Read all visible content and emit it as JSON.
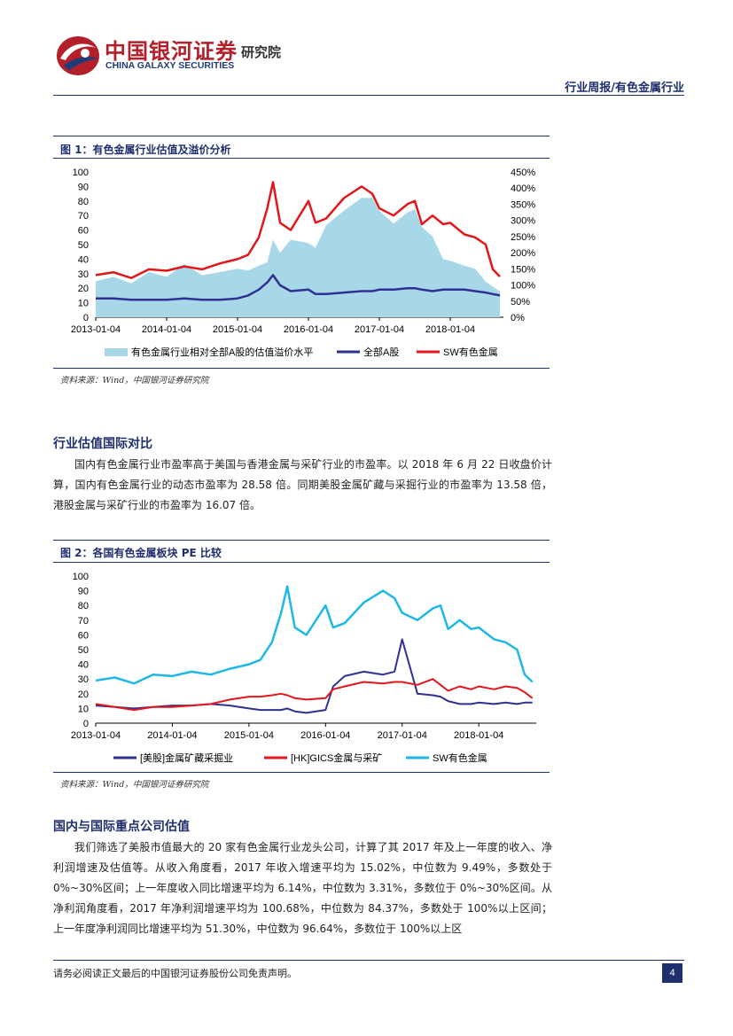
{
  "header": {
    "logo_cn": "中国银河证券",
    "logo_en": "CHINA GALAXY SECURITIES",
    "logo_sub": "研究院",
    "report_type": "行业周报/有色金属行业"
  },
  "figure1": {
    "title": "图 1：有色金属行业估值及溢价分析",
    "source": "资料来源：Wind，中国银河证券研究院"
  },
  "section1": {
    "heading": "行业估值国际对比",
    "paragraph": "国内有色金属行业市盈率高于美国与香港金属与采矿行业的市盈率。以 2018 年 6 月 22 日收盘价计算，国内有色金属行业的动态市盈率为 28.58 倍。同期美股金属矿藏与采掘行业的市盈率为 13.58 倍，港股金属与采矿行业的市盈率为 16.07 倍。"
  },
  "figure2": {
    "title": "图 2：各国有色金属板块 PE 比较",
    "source": "资料来源：Wind，中国银河证券研究院"
  },
  "section2": {
    "heading": "国内与国际重点公司估值",
    "paragraph": "我们筛选了美股市值最大的 20 家有色金属行业龙头公司，计算了其 2017 年及上一年度的收入、净利润增速及估值等。从收入角度看，2017 年收入增速平均为 15.02%，中位数为 9.49%，多数处于 0%~30%区间；上一年度收入同比增速平均为 6.14%，中位数为 3.31%，多数位于 0%~30%区间。从净利润角度看，2017 年净利润增速平均为 100.68%，中位数为 84.37%，多数处于 100%以上区间；上一年度净利润同比增速平均为 51.30%，中位数为 96.64%，多数位于 100%以上区"
  },
  "footer": {
    "disclaimer": "请务必阅读正文最后的中国银河证券股份公司免责声明。",
    "page": "4"
  },
  "colors": {
    "brand_navy": "#1f2f6e",
    "brand_red": "#b3202a",
    "premium_area": "#a8d8e8",
    "all_a": "#2e3192",
    "sw_red": "#e3161b",
    "us_navy": "#2e3192",
    "hk_red": "#e3161b",
    "sw_cyan": "#1fb8e6"
  },
  "chart_data": [
    {
      "type": "line",
      "title": "有色金属行业估值及溢价分析",
      "x_tick_labels": [
        "2013-01-04",
        "2014-01-04",
        "2015-01-04",
        "2016-01-04",
        "2017-01-04",
        "2018-01-04"
      ],
      "x_range": [
        2013.0,
        2018.75
      ],
      "y_left_ticks": [
        "0",
        "10",
        "20",
        "30",
        "40",
        "50",
        "60",
        "70",
        "80",
        "90",
        "100"
      ],
      "y_left_range": [
        0,
        100
      ],
      "y_right_ticks": [
        "0%",
        "50%",
        "100%",
        "150%",
        "200%",
        "250%",
        "300%",
        "350%",
        "400%",
        "450%"
      ],
      "y_right_range": [
        0,
        450
      ],
      "legend": [
        "有色金属行业相对全部A股的估值溢价水平",
        "全部A股",
        "SW有色金属"
      ],
      "legend_position": "bottom",
      "x": [
        2013.0,
        2013.25,
        2013.5,
        2013.75,
        2014.0,
        2014.25,
        2014.5,
        2014.75,
        2015.0,
        2015.15,
        2015.3,
        2015.42,
        2015.5,
        2015.6,
        2015.75,
        2016.0,
        2016.1,
        2016.25,
        2016.5,
        2016.75,
        2016.9,
        2017.0,
        2017.2,
        2017.4,
        2017.5,
        2017.6,
        2017.75,
        2017.9,
        2018.0,
        2018.2,
        2018.35,
        2018.5,
        2018.6,
        2018.7
      ],
      "series": [
        {
          "name": "有色金属行业相对全部A股的估值溢价水平",
          "axis": "right",
          "kind": "area",
          "values": [
            112,
            125,
            105,
            140,
            125,
            165,
            130,
            140,
            150,
            145,
            160,
            170,
            240,
            200,
            240,
            230,
            215,
            285,
            330,
            370,
            370,
            330,
            290,
            325,
            335,
            280,
            250,
            180,
            175,
            160,
            150,
            110,
            95,
            80
          ]
        },
        {
          "name": "全部A股",
          "axis": "left",
          "values": [
            13,
            13,
            12,
            12,
            12,
            13,
            12,
            12,
            13,
            15,
            19,
            24,
            29,
            22,
            18,
            19,
            16,
            16,
            17,
            18,
            18,
            19,
            19,
            20,
            20,
            19,
            18,
            19,
            19,
            19,
            18,
            17,
            16,
            15
          ]
        },
        {
          "name": "SW有色金属",
          "axis": "left",
          "values": [
            29,
            31,
            27,
            33,
            32,
            35,
            33,
            37,
            40,
            43,
            55,
            75,
            93,
            65,
            60,
            80,
            65,
            68,
            82,
            90,
            85,
            75,
            70,
            78,
            80,
            64,
            70,
            64,
            65,
            57,
            55,
            50,
            33,
            28
          ]
        }
      ]
    },
    {
      "type": "line",
      "title": "各国有色金属板块 PE 比较",
      "x_tick_labels": [
        "2013-01-04",
        "2014-01-04",
        "2015-01-04",
        "2016-01-04",
        "2017-01-04",
        "2018-01-04"
      ],
      "x_range": [
        2013.0,
        2018.75
      ],
      "y_ticks": [
        "0",
        "10",
        "20",
        "30",
        "40",
        "50",
        "60",
        "70",
        "80",
        "90",
        "100"
      ],
      "y_range": [
        0,
        100
      ],
      "legend": [
        "[美股]金属矿藏采掘业",
        "[HK]GICS金属与采矿",
        "SW有色金属"
      ],
      "legend_position": "bottom",
      "x": [
        2013.0,
        2013.25,
        2013.5,
        2013.75,
        2014.0,
        2014.25,
        2014.5,
        2014.75,
        2015.0,
        2015.15,
        2015.3,
        2015.42,
        2015.5,
        2015.6,
        2015.75,
        2016.0,
        2016.1,
        2016.25,
        2016.5,
        2016.75,
        2016.9,
        2017.0,
        2017.2,
        2017.4,
        2017.5,
        2017.6,
        2017.75,
        2017.9,
        2018.0,
        2018.2,
        2018.35,
        2018.5,
        2018.6,
        2018.7
      ],
      "series": [
        {
          "name": "[美股]金属矿藏采掘业",
          "values": [
            12,
            11,
            10,
            11,
            12,
            12,
            13,
            12,
            10,
            9,
            9,
            9,
            10,
            8,
            7,
            9,
            25,
            32,
            35,
            33,
            35,
            57,
            20,
            19,
            18,
            15,
            13,
            13,
            14,
            13,
            14,
            13,
            14,
            14
          ]
        },
        {
          "name": "[HK]GICS金属与采矿",
          "values": [
            13,
            11,
            9,
            11,
            11,
            12,
            13,
            16,
            18,
            18,
            19,
            20,
            19,
            17,
            16,
            17,
            23,
            25,
            28,
            27,
            28,
            28,
            26,
            30,
            26,
            22,
            25,
            23,
            25,
            23,
            25,
            24,
            21,
            17
          ]
        },
        {
          "name": "SW有色金属",
          "values": [
            29,
            31,
            27,
            33,
            32,
            35,
            33,
            37,
            40,
            43,
            55,
            75,
            93,
            65,
            60,
            80,
            65,
            68,
            82,
            90,
            85,
            75,
            70,
            78,
            80,
            64,
            70,
            64,
            65,
            57,
            55,
            50,
            33,
            28
          ]
        }
      ]
    }
  ]
}
